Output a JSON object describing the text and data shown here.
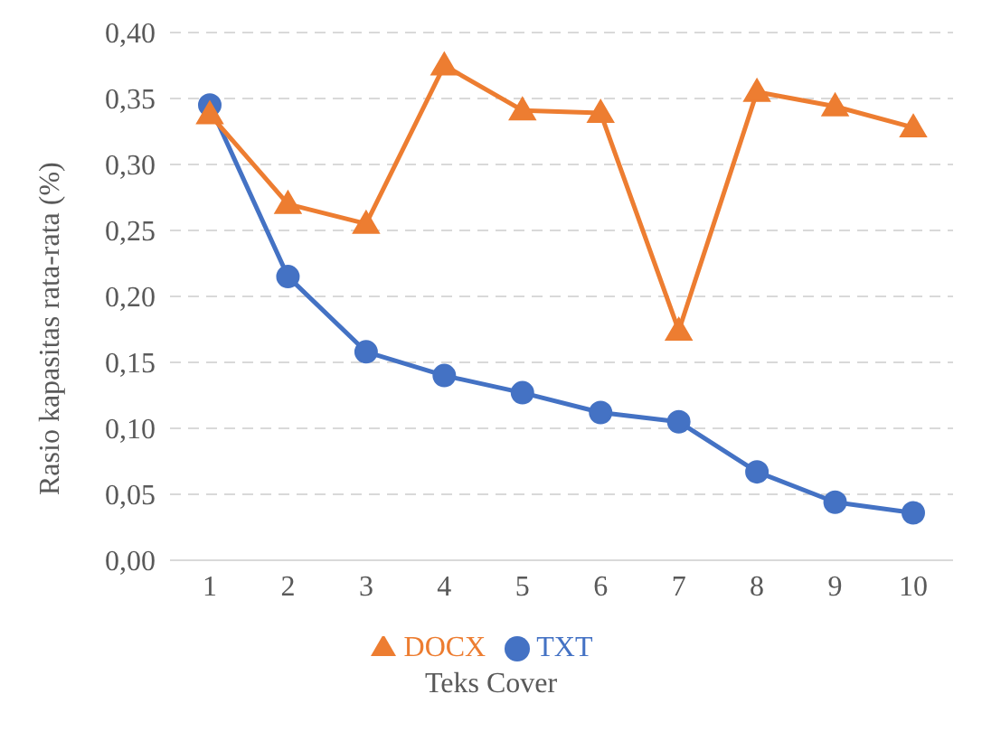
{
  "chart_data": {
    "type": "line",
    "xlabel": "Teks Cover",
    "ylabel": "Rasio kapasitas rata-rata (%)",
    "categories": [
      "1",
      "2",
      "3",
      "4",
      "5",
      "6",
      "7",
      "8",
      "9",
      "10"
    ],
    "series": [
      {
        "name": "TXT",
        "color": "#4472c4",
        "marker": "circle",
        "values": [
          0.345,
          0.215,
          0.158,
          0.14,
          0.127,
          0.112,
          0.105,
          0.067,
          0.044,
          0.036
        ]
      },
      {
        "name": "DOCX",
        "color": "#ed7d31",
        "marker": "triangle",
        "values": [
          0.338,
          0.27,
          0.255,
          0.375,
          0.341,
          0.339,
          0.174,
          0.355,
          0.344,
          0.328
        ]
      }
    ],
    "ylim": [
      0,
      0.4
    ],
    "yticks": [
      {
        "value": 0,
        "label": "0,00"
      },
      {
        "value": 0.05,
        "label": "0,05"
      },
      {
        "value": 0.1,
        "label": "0,10"
      },
      {
        "value": 0.15,
        "label": "0,15"
      },
      {
        "value": 0.2,
        "label": "0,20"
      },
      {
        "value": 0.25,
        "label": "0,25"
      },
      {
        "value": 0.3,
        "label": "0,30"
      },
      {
        "value": 0.35,
        "label": "0,35"
      },
      {
        "value": 0.4,
        "label": "0,40"
      }
    ],
    "grid": "y",
    "legend": "bottom",
    "line_style": "solid"
  }
}
